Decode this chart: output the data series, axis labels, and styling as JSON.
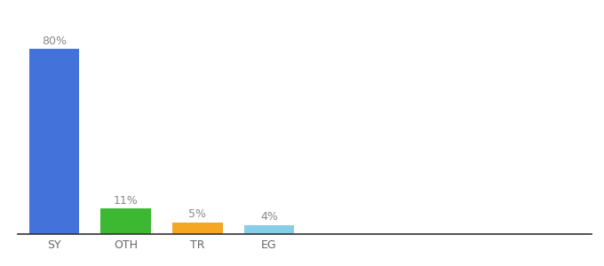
{
  "categories": [
    "SY",
    "OTH",
    "TR",
    "EG"
  ],
  "values": [
    80,
    11,
    5,
    4
  ],
  "labels": [
    "80%",
    "11%",
    "5%",
    "4%"
  ],
  "bar_colors": [
    "#4472db",
    "#3cb832",
    "#f5a623",
    "#87ceeb"
  ],
  "background_color": "#ffffff",
  "ylim": [
    0,
    92
  ],
  "label_fontsize": 9,
  "tick_fontsize": 9,
  "bar_positions": [
    0.5,
    1.5,
    2.5,
    3.5
  ],
  "bar_width": 0.7,
  "xlim": [
    0,
    8
  ]
}
